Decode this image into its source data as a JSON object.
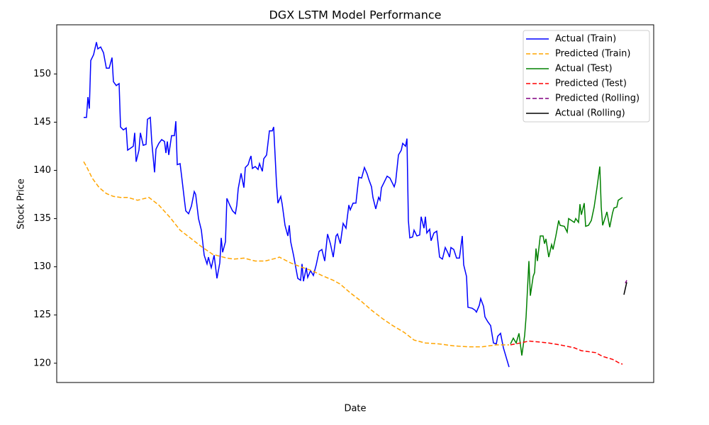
{
  "chart_data": {
    "type": "line",
    "title": "DGX LSTM Model Performance",
    "x_label": "Date",
    "y_label": "Stock Price",
    "xlim": [
      -19,
      402
    ],
    "ylim": [
      118.0,
      155.1
    ],
    "yticks": [
      120,
      125,
      130,
      135,
      140,
      145,
      150
    ],
    "grid": false,
    "legend": "upper right",
    "series": [
      {
        "name": "Actual (Train)",
        "color": "#0000ff",
        "linestyle": "solid",
        "x": [
          0,
          2,
          3,
          4,
          5,
          7,
          9,
          10,
          12,
          14,
          16,
          18,
          20,
          21,
          23,
          25,
          26,
          28,
          30,
          31,
          33,
          35,
          36,
          37,
          39,
          40,
          42,
          44,
          45,
          47,
          48,
          50,
          51,
          53,
          55,
          57,
          58,
          59,
          60,
          62,
          64,
          65,
          66,
          68,
          69,
          71,
          72,
          74,
          76,
          78,
          79,
          81,
          83,
          85,
          87,
          88,
          89,
          90,
          92,
          94,
          96,
          97,
          98,
          100,
          101,
          103,
          105,
          107,
          108,
          109,
          111,
          113,
          114,
          116,
          117,
          118,
          119,
          121,
          123,
          124,
          126,
          127,
          129,
          131,
          133,
          134,
          136,
          137,
          139,
          140,
          142,
          144,
          145,
          146,
          148,
          151,
          153,
          154,
          155,
          157,
          158,
          160,
          162,
          164,
          166,
          168,
          170,
          172,
          174,
          176,
          178,
          179,
          181,
          183,
          185,
          187,
          188,
          190,
          192,
          194,
          196,
          198,
          200,
          201,
          203,
          204,
          206,
          208,
          209,
          210,
          212,
          214,
          216,
          218,
          219,
          220,
          222,
          224,
          225,
          227,
          228,
          229,
          230,
          232,
          233,
          235,
          237,
          238,
          240,
          241,
          242,
          244,
          245,
          247,
          249,
          251,
          253,
          255,
          257,
          258,
          259,
          261,
          263,
          265,
          267,
          268,
          270,
          271,
          274,
          276,
          277,
          279,
          280,
          282,
          283,
          285,
          287,
          289,
          291,
          292,
          294,
          296,
          298,
          300
        ],
        "values": [
          145.5,
          145.5,
          147.6,
          146.4,
          151.4,
          152,
          153.3,
          152.6,
          152.8,
          152.2,
          150.6,
          150.6,
          151.7,
          149.2,
          148.8,
          149,
          144.5,
          144.2,
          144.4,
          142.1,
          142.3,
          142.5,
          143.9,
          140.9,
          142.1,
          143.9,
          142.6,
          142.7,
          145.3,
          145.5,
          143,
          139.8,
          142.2,
          142.8,
          143.2,
          143,
          141.8,
          143,
          141.6,
          143.6,
          143.6,
          145.1,
          140.6,
          140.7,
          139.5,
          137,
          135.8,
          135.5,
          136.3,
          137.8,
          137.5,
          135,
          133.8,
          131.2,
          130.3,
          131,
          130.4,
          129.9,
          131.2,
          128.8,
          130.4,
          133,
          131.5,
          132.6,
          137.1,
          136.4,
          135.8,
          135.5,
          136.4,
          138.1,
          139.7,
          138.2,
          140.3,
          140.6,
          141.1,
          141.5,
          140.2,
          140.4,
          140.1,
          140.7,
          139.9,
          141.2,
          141.6,
          144.1,
          144.1,
          144.5,
          138.6,
          136.6,
          137.3,
          136.5,
          134.3,
          133.2,
          134.3,
          132.6,
          131.2,
          128.8,
          128.6,
          130.3,
          128.5,
          129.9,
          128.9,
          129.6,
          129.1,
          130.2,
          131.6,
          131.8,
          130.6,
          133.4,
          132.4,
          131,
          133.2,
          133.4,
          132.4,
          134.5,
          134,
          136.4,
          135.9,
          136.6,
          136.6,
          139.3,
          139.2,
          140.3,
          139.6,
          139.1,
          138.3,
          137.2,
          136,
          137.2,
          136.9,
          138.2,
          138.8,
          139.4,
          139.2,
          138.6,
          138.3,
          138.8,
          141.6,
          142.1,
          142.8,
          142.5,
          143.3,
          134.8,
          133,
          133.1,
          133.8,
          133.2,
          133.3,
          135.2,
          134,
          135.2,
          133.5,
          133.9,
          132.7,
          133.5,
          133.7,
          131,
          130.8,
          132,
          131.4,
          131,
          132,
          131.8,
          130.9,
          130.9,
          133.2,
          130.2,
          129,
          125.8,
          125.7,
          125.5,
          125.3,
          126,
          126.7,
          125.9,
          124.8,
          124.3,
          123.9,
          122.1,
          122,
          122.8,
          123.1,
          121.6,
          120.6,
          119.6
        ]
      },
      {
        "name": "Predicted (Train)",
        "color": "#ffa500",
        "linestyle": "dashed",
        "x": [
          0,
          2,
          6,
          11,
          16,
          21,
          26,
          31,
          38,
          46,
          53,
          61,
          68,
          76,
          83,
          91,
          101,
          106,
          113,
          121,
          128,
          136,
          138,
          146,
          153,
          161,
          168,
          176,
          181,
          188,
          196,
          203,
          211,
          218,
          226,
          233,
          241,
          251,
          261,
          271,
          281,
          291,
          300
        ],
        "values": [
          140.9,
          140.4,
          139.2,
          138.2,
          137.6,
          137.3,
          137.2,
          137.2,
          136.9,
          137.2,
          136.4,
          135.1,
          133.8,
          132.9,
          132.1,
          131.3,
          130.9,
          130.8,
          130.9,
          130.6,
          130.6,
          130.9,
          131,
          130.4,
          130,
          129.6,
          129.1,
          128.6,
          128.2,
          127.3,
          126.4,
          125.5,
          124.6,
          123.9,
          123.2,
          122.4,
          122.1,
          122,
          121.8,
          121.7,
          121.7,
          121.9,
          121.9
        ]
      },
      {
        "name": "Actual (Test)",
        "color": "#008000",
        "linestyle": "solid",
        "x": [
          301,
          303,
          305,
          307,
          309,
          311,
          312,
          314,
          315,
          317,
          318,
          319,
          320,
          322,
          324,
          325,
          326,
          328,
          330,
          331,
          333,
          335,
          336,
          339,
          341,
          342,
          344,
          346,
          347,
          349,
          350,
          351,
          353,
          354,
          356,
          358,
          360,
          362,
          364,
          365,
          366,
          368,
          369,
          371,
          373,
          374,
          376,
          377,
          380
        ],
        "values": [
          122,
          122.6,
          122.1,
          123.1,
          120.8,
          122.9,
          124.8,
          130.6,
          127,
          129,
          129.4,
          131.9,
          130.6,
          133.2,
          133.2,
          132.4,
          132.9,
          131,
          132.3,
          131.8,
          133.2,
          134.8,
          134.3,
          134.2,
          133.6,
          135,
          134.8,
          134.6,
          135,
          134.6,
          136.5,
          135.4,
          136.6,
          134.2,
          134.3,
          134.8,
          136.2,
          138.2,
          140.4,
          136.2,
          134.3,
          135.2,
          135.7,
          134.1,
          135.6,
          136.1,
          136.2,
          136.9,
          137.2
        ]
      },
      {
        "name": "Predicted (Test)",
        "color": "#ff0000",
        "linestyle": "dashed",
        "x": [
          301,
          308,
          314,
          321,
          328,
          336,
          346,
          351,
          361,
          366,
          373,
          378,
          380
        ],
        "values": [
          121.9,
          122.1,
          122.3,
          122.2,
          122.1,
          121.9,
          121.6,
          121.3,
          121.1,
          120.7,
          120.4,
          120,
          119.9
        ]
      },
      {
        "name": "Predicted (Rolling)",
        "color": "#800080",
        "linestyle": "dashed",
        "x": [
          382,
          383
        ],
        "values": [
          128.3,
          128.6
        ]
      },
      {
        "name": "Actual (Rolling)",
        "color": "#000000",
        "linestyle": "solid",
        "x": [
          381,
          383
        ],
        "values": [
          127.1,
          128.4
        ]
      }
    ]
  }
}
